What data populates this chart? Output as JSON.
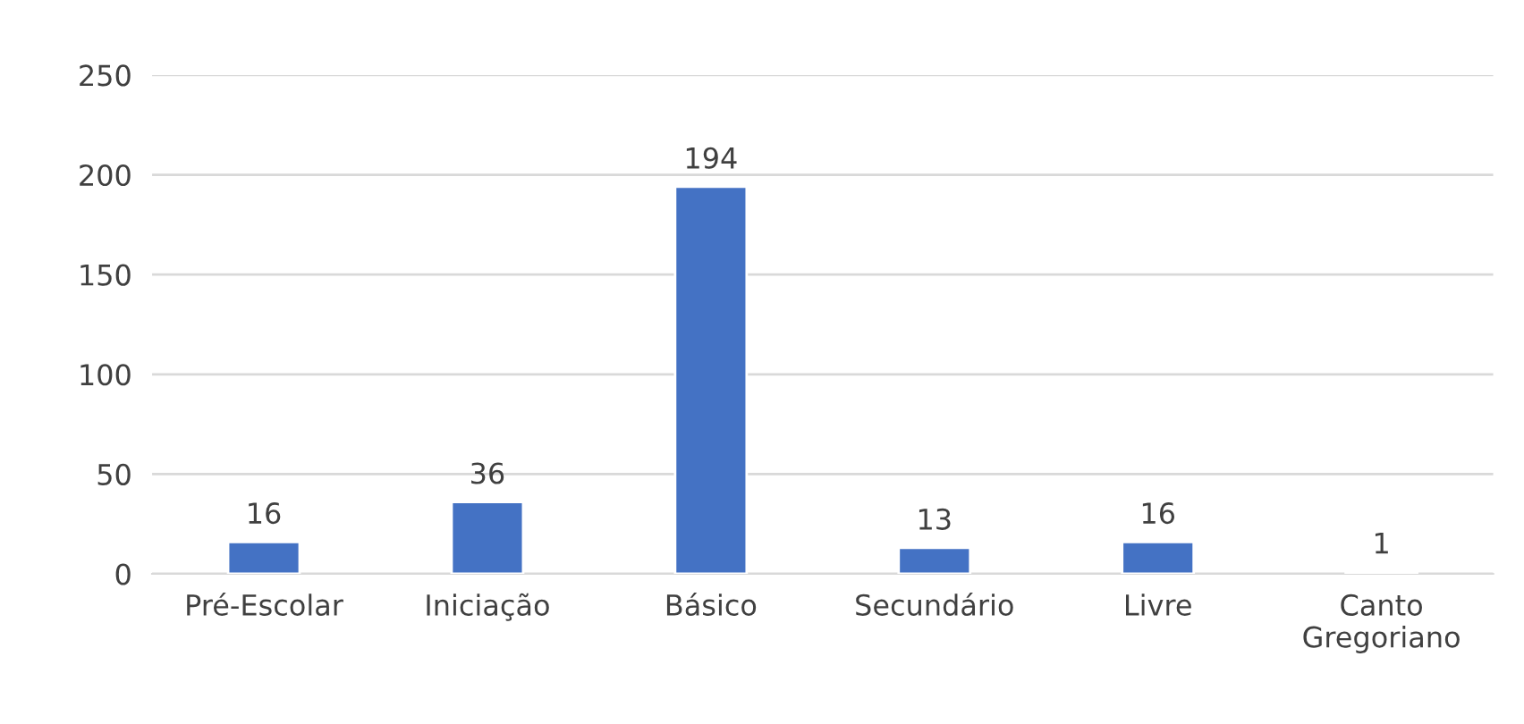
{
  "chart_data": {
    "type": "bar",
    "categories": [
      "Pré-Escolar",
      "Iniciação",
      "Básico",
      "Secundário",
      "Livre",
      "Canto\nGregoriano"
    ],
    "values": [
      16,
      36,
      194,
      13,
      16,
      1
    ],
    "color": "#4472c4",
    "ylim": [
      0,
      250
    ],
    "yticks": [
      0,
      50,
      100,
      150,
      200,
      250
    ],
    "grid": "y",
    "data_labels": true,
    "legend": false
  }
}
